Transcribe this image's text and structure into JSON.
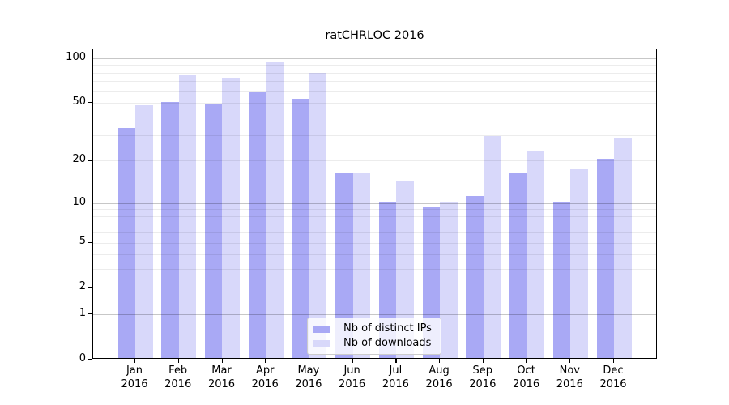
{
  "figure": {
    "title": "ratCHRLOC 2016",
    "background": "#ffffff"
  },
  "chart_data": {
    "type": "bar",
    "title": "ratCHRLOC 2016",
    "categories": [
      "Jan",
      "Feb",
      "Mar",
      "Apr",
      "May",
      "Jun",
      "Jul",
      "Aug",
      "Sep",
      "Oct",
      "Nov",
      "Dec"
    ],
    "year_label": "2016",
    "series": [
      {
        "name": "Nb of distinct IPs",
        "color": "#a9a9f5",
        "values": [
          33,
          49,
          48,
          57,
          52,
          16,
          10,
          9,
          11,
          16,
          10,
          20
        ]
      },
      {
        "name": "Nb of downloads",
        "color": "#d8d8fa",
        "values": [
          47,
          76,
          72,
          91,
          78,
          16,
          14,
          10,
          29,
          23,
          17,
          28
        ]
      }
    ],
    "xlabel": "",
    "ylabel": "",
    "yscale": "log1p",
    "ylim": [
      0,
      114
    ],
    "ytick_labels": [
      "100",
      "50",
      "20",
      "10",
      "5",
      "2",
      "1",
      "0"
    ],
    "ytick_values": [
      100,
      50,
      20,
      10,
      5,
      2,
      1,
      0
    ],
    "grid_major_values": [
      1,
      10,
      100
    ],
    "grid_minor_values": [
      2,
      3,
      4,
      5,
      6,
      7,
      8,
      9,
      20,
      30,
      40,
      50,
      60,
      70,
      80,
      90
    ],
    "grid": true,
    "legend_position": "lower-center",
    "legend_entries": [
      "Nb of distinct IPs",
      "Nb of downloads"
    ]
  }
}
